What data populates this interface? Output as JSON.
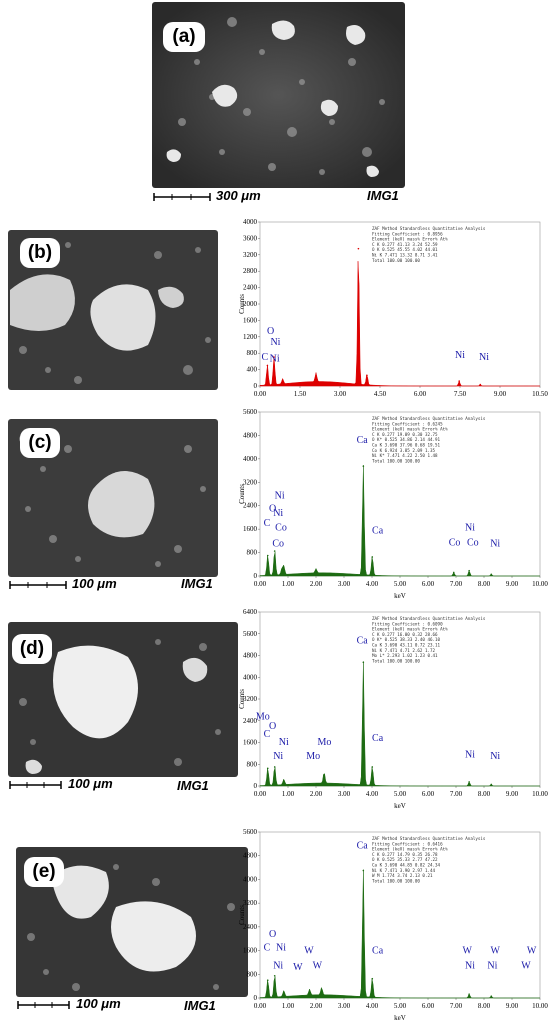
{
  "panels": [
    {
      "id": "a",
      "label": "(a)",
      "scale_text": "300 μm",
      "image_id": "IMG1"
    },
    {
      "id": "b",
      "label": "(b)"
    },
    {
      "id": "c",
      "label": "(c)",
      "scale_text": "100 μm",
      "image_id": "IMG1"
    },
    {
      "id": "d",
      "label": "(d)",
      "scale_text": "100 μm",
      "image_id": "IMG1"
    },
    {
      "id": "e",
      "label": "(e)",
      "scale_text": "100 μm",
      "image_id": "IMG1"
    }
  ],
  "chart_data": [
    {
      "panel": "b",
      "type": "line",
      "color": "#dd0000",
      "xlim": [
        0,
        10.5
      ],
      "ylim": [
        0,
        4000
      ],
      "xticks": [
        "0.00",
        "1.50",
        "3.00",
        "4.50",
        "6.00",
        "7.50",
        "9.00",
        "10.50"
      ],
      "yticks": [
        "0",
        "400",
        "800",
        "1200",
        "1600",
        "2000",
        "2400",
        "2800",
        "3200",
        "3600",
        "4000"
      ],
      "ylabel": "Counts",
      "xlabel": "",
      "peaks": [
        {
          "x": 0.277,
          "y": 500
        },
        {
          "x": 0.525,
          "y": 700
        },
        {
          "x": 0.85,
          "y": 130
        },
        {
          "x": 2.1,
          "y": 220
        },
        {
          "x": 3.69,
          "y": 3350
        },
        {
          "x": 4.01,
          "y": 260
        },
        {
          "x": 7.47,
          "y": 120
        },
        {
          "x": 8.26,
          "y": 35
        }
      ],
      "element_labels": [
        {
          "text": "C",
          "x": 0.18,
          "y": 630
        },
        {
          "text": "O",
          "x": 0.4,
          "y": 1270
        },
        {
          "text": "Ni",
          "x": 0.58,
          "y": 1000
        },
        {
          "text": "Ni",
          "x": 0.55,
          "y": 600
        },
        {
          "text": "Ni",
          "x": 7.5,
          "y": 680
        },
        {
          "text": "Ni",
          "x": 8.4,
          "y": 630
        }
      ],
      "table": [
        "ZAF Method Standardless Quantitative Analysis",
        "Fitting Coefficient : 0.8956",
        "Element    (keV)   mass%   Error%    At%",
        "C K        0.277   41.13    3.24    52.59",
        "O K        0.525   45.55    4.02    44.01",
        "Ni K       7.471   13.32    8.71     3.41",
        "Total             100.00           100.00"
      ]
    },
    {
      "panel": "c",
      "type": "line",
      "color": "#1d6b12",
      "xlim": [
        0,
        10
      ],
      "ylim": [
        0,
        5600
      ],
      "xticks": [
        "0.00",
        "1.00",
        "2.00",
        "3.00",
        "4.00",
        "5.00",
        "6.00",
        "7.00",
        "8.00",
        "9.00",
        "10.00"
      ],
      "yticks": [
        "0",
        "800",
        "1600",
        "2400",
        "3200",
        "4000",
        "4800",
        "5600"
      ],
      "ylabel": "Counts",
      "xlabel": "keV",
      "peaks": [
        {
          "x": 0.277,
          "y": 700
        },
        {
          "x": 0.525,
          "y": 850
        },
        {
          "x": 0.78,
          "y": 200
        },
        {
          "x": 0.85,
          "y": 300
        },
        {
          "x": 2.0,
          "y": 150
        },
        {
          "x": 3.69,
          "y": 3750
        },
        {
          "x": 4.01,
          "y": 650
        },
        {
          "x": 6.92,
          "y": 120
        },
        {
          "x": 7.47,
          "y": 180
        },
        {
          "x": 8.26,
          "y": 60
        }
      ],
      "element_labels": [
        {
          "text": "Ca",
          "x": 3.65,
          "y": 4550
        },
        {
          "text": "Ca",
          "x": 4.2,
          "y": 1450
        },
        {
          "text": "C",
          "x": 0.25,
          "y": 1700
        },
        {
          "text": "O",
          "x": 0.45,
          "y": 2200
        },
        {
          "text": "Ni",
          "x": 0.7,
          "y": 2650
        },
        {
          "text": "Ni",
          "x": 0.65,
          "y": 2050
        },
        {
          "text": "Co",
          "x": 0.75,
          "y": 1550
        },
        {
          "text": "Co",
          "x": 0.65,
          "y": 1000
        },
        {
          "text": "Ni",
          "x": 7.5,
          "y": 1550
        },
        {
          "text": "Co",
          "x": 6.95,
          "y": 1050
        },
        {
          "text": "Co",
          "x": 7.6,
          "y": 1050
        },
        {
          "text": "Ni",
          "x": 8.4,
          "y": 1000
        }
      ],
      "table": [
        "ZAF Method Standardless Quantitative Analysis",
        "Fitting Coefficient : 0.6245",
        "Element    (keV)   mass%   Error%    At%",
        "C K        0.277   19.09    0.30    32.75",
        "O K*       0.525   34.86    2.14    44.91",
        "Ca K       3.690   37.96    0.68    19.51",
        "Co K       6.924    3.85    2.09     1.35",
        "Ni K*      7.471    4.22    2.50     1.48",
        "Total             100.00           100.00"
      ]
    },
    {
      "panel": "d",
      "type": "line",
      "color": "#1d6b12",
      "xlim": [
        0,
        10
      ],
      "ylim": [
        0,
        6400
      ],
      "xticks": [
        "0.00",
        "1.00",
        "2.00",
        "3.00",
        "4.00",
        "5.00",
        "6.00",
        "7.00",
        "8.00",
        "9.00",
        "10.00"
      ],
      "yticks": [
        "0",
        "800",
        "1600",
        "2400",
        "3200",
        "4000",
        "4800",
        "5600",
        "6400"
      ],
      "ylabel": "Counts",
      "xlabel": "keV",
      "peaks": [
        {
          "x": 0.277,
          "y": 650
        },
        {
          "x": 0.525,
          "y": 700
        },
        {
          "x": 0.85,
          "y": 200
        },
        {
          "x": 2.29,
          "y": 400
        },
        {
          "x": 3.69,
          "y": 4550
        },
        {
          "x": 4.01,
          "y": 700
        },
        {
          "x": 7.47,
          "y": 150
        },
        {
          "x": 8.26,
          "y": 60
        }
      ],
      "element_labels": [
        {
          "text": "Ca",
          "x": 3.65,
          "y": 5250
        },
        {
          "text": "Ca",
          "x": 4.2,
          "y": 1650
        },
        {
          "text": "Mo",
          "x": 0.1,
          "y": 2450
        },
        {
          "text": "O",
          "x": 0.45,
          "y": 2100
        },
        {
          "text": "C",
          "x": 0.25,
          "y": 1800
        },
        {
          "text": "Ni",
          "x": 0.85,
          "y": 1500
        },
        {
          "text": "Ni",
          "x": 0.65,
          "y": 1000
        },
        {
          "text": "Mo",
          "x": 2.3,
          "y": 1500
        },
        {
          "text": "Mo",
          "x": 1.9,
          "y": 1000
        },
        {
          "text": "Ni",
          "x": 7.5,
          "y": 1050
        },
        {
          "text": "Ni",
          "x": 8.4,
          "y": 1000
        }
      ],
      "table": [
        "ZAF Method Standardless Quantitative Analysis",
        "Fitting Coefficient : 0.6090",
        "Element    (keV)   mass%   Error%    At%",
        "C K        0.277   16.00    0.32    28.66",
        "O K*       0.525   38.33    2.40    46.10",
        "Ca K       3.690   43.11    0.72    23.11",
        "Ni K       7.471    4.71    2.62     1.72",
        "Mo L*      2.293    1.02    1.23     0.41",
        "Total             100.00           100.00"
      ]
    },
    {
      "panel": "e",
      "type": "line",
      "color": "#1d6b12",
      "xlim": [
        0,
        10
      ],
      "ylim": [
        0,
        5600
      ],
      "xticks": [
        "0.00",
        "1.00",
        "2.00",
        "3.00",
        "4.00",
        "5.00",
        "6.00",
        "7.00",
        "8.00",
        "9.00",
        "10.00"
      ],
      "yticks": [
        "0",
        "800",
        "1600",
        "2400",
        "3200",
        "4000",
        "4800",
        "5600"
      ],
      "ylabel": "Counts",
      "xlabel": "keV",
      "peaks": [
        {
          "x": 0.277,
          "y": 600
        },
        {
          "x": 0.525,
          "y": 750
        },
        {
          "x": 0.85,
          "y": 200
        },
        {
          "x": 1.77,
          "y": 200
        },
        {
          "x": 2.2,
          "y": 250
        },
        {
          "x": 3.69,
          "y": 4300
        },
        {
          "x": 4.01,
          "y": 650
        },
        {
          "x": 7.47,
          "y": 130
        },
        {
          "x": 8.26,
          "y": 60
        }
      ],
      "element_labels": [
        {
          "text": "Ca",
          "x": 3.65,
          "y": 5050
        },
        {
          "text": "Ca",
          "x": 4.2,
          "y": 1500
        },
        {
          "text": "O",
          "x": 0.45,
          "y": 2050
        },
        {
          "text": "C",
          "x": 0.25,
          "y": 1600
        },
        {
          "text": "Ni",
          "x": 0.75,
          "y": 1600
        },
        {
          "text": "Ni",
          "x": 0.65,
          "y": 1000
        },
        {
          "text": "W",
          "x": 1.75,
          "y": 1500
        },
        {
          "text": "W",
          "x": 1.35,
          "y": 950
        },
        {
          "text": "W",
          "x": 2.05,
          "y": 1000
        },
        {
          "text": "W",
          "x": 7.4,
          "y": 1500
        },
        {
          "text": "Ni",
          "x": 7.5,
          "y": 1000
        },
        {
          "text": "W",
          "x": 8.4,
          "y": 1500
        },
        {
          "text": "Ni",
          "x": 8.3,
          "y": 1000
        },
        {
          "text": "W",
          "x": 9.7,
          "y": 1500
        },
        {
          "text": "W",
          "x": 9.5,
          "y": 1000
        }
      ],
      "table": [
        "ZAF Method Standardless Quantitative Analysis",
        "Fitting Coefficient : 0.6416",
        "Element    (keV)   mass%   Error%    At%",
        "C K        0.277   14.79    0.35    26.78",
        "O K        0.525   35.33    2.77    47.22",
        "Ca K       3.690   44.85    0.82    24.34",
        "Ni K       7.471    3.90    2.97     1.44",
        "W M        1.774    3.74    2.13     0.21",
        "Total             100.00           100.00"
      ]
    }
  ]
}
